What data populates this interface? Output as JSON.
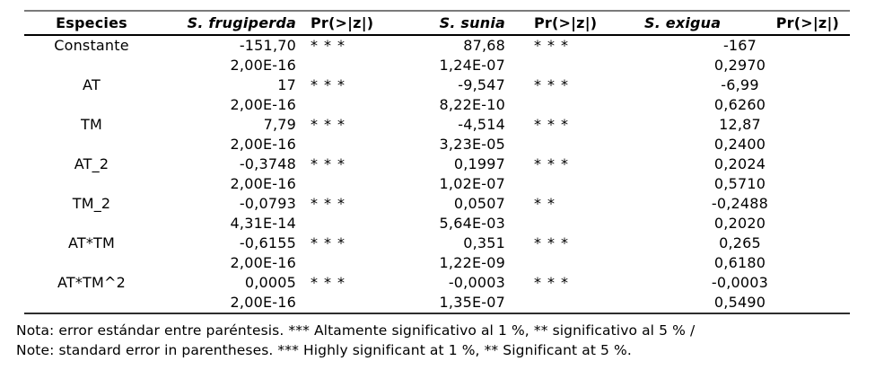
{
  "table": {
    "header": {
      "especies": "Especies",
      "frugiperda": "S. frugiperda",
      "pr1": "Pr(>|z|)",
      "sunia": "S. sunia",
      "pr2": "Pr(>|z|)",
      "exigua": "S. exigua",
      "pr3": "Pr(>|z|)"
    },
    "rows": [
      {
        "label": "Constante",
        "frugiperda": "-151,70",
        "frugiperda_sig": "***",
        "sunia": "87,68",
        "sunia_sig": "***",
        "exigua": "-167"
      },
      {
        "label": "",
        "frugiperda": "2,00E-16",
        "frugiperda_sig": "",
        "sunia": "1,24E-07",
        "sunia_sig": "",
        "exigua": "0,2970"
      },
      {
        "label": "AT",
        "frugiperda": "17",
        "frugiperda_sig": "***",
        "sunia": "-9,547",
        "sunia_sig": "***",
        "exigua": "-6,99"
      },
      {
        "label": "",
        "frugiperda": "2,00E-16",
        "frugiperda_sig": "",
        "sunia": "8,22E-10",
        "sunia_sig": "",
        "exigua": "0,6260"
      },
      {
        "label": "TM",
        "frugiperda": "7,79",
        "frugiperda_sig": "***",
        "sunia": "-4,514",
        "sunia_sig": "***",
        "exigua": "12,87"
      },
      {
        "label": "",
        "frugiperda": "2,00E-16",
        "frugiperda_sig": "",
        "sunia": "3,23E-05",
        "sunia_sig": "",
        "exigua": "0,2400"
      },
      {
        "label": "AT_2",
        "frugiperda": "-0,3748",
        "frugiperda_sig": "***",
        "sunia": "0,1997",
        "sunia_sig": "***",
        "exigua": "0,2024"
      },
      {
        "label": "",
        "frugiperda": "2,00E-16",
        "frugiperda_sig": "",
        "sunia": "1,02E-07",
        "sunia_sig": "",
        "exigua": "0,5710"
      },
      {
        "label": "TM_2",
        "frugiperda": "-0,0793",
        "frugiperda_sig": "***",
        "sunia": "0,0507",
        "sunia_sig": "**",
        "exigua": "-0,2488"
      },
      {
        "label": "",
        "frugiperda": "4,31E-14",
        "frugiperda_sig": "",
        "sunia": "5,64E-03",
        "sunia_sig": "",
        "exigua": "0,2020"
      },
      {
        "label": "AT*TM",
        "frugiperda": "-0,6155",
        "frugiperda_sig": "***",
        "sunia": "0,351",
        "sunia_sig": "***",
        "exigua": "0,265"
      },
      {
        "label": "",
        "frugiperda": "2,00E-16",
        "frugiperda_sig": "",
        "sunia": "1,22E-09",
        "sunia_sig": "",
        "exigua": "0,6180"
      },
      {
        "label": "AT*TM^2",
        "frugiperda": "0,0005",
        "frugiperda_sig": "***",
        "sunia": "-0,0003",
        "sunia_sig": "***",
        "exigua": "-0,0003"
      },
      {
        "label": "",
        "frugiperda": "2,00E-16",
        "frugiperda_sig": "",
        "sunia": "1,35E-07",
        "sunia_sig": "",
        "exigua": "0,5490"
      }
    ]
  },
  "notes": {
    "spanish": "Nota: error estándar entre paréntesis. *** Altamente significativo al 1 %, ** significativo al 5 % /",
    "english": "Note: standard error in parentheses. *** Highly significant at 1 %, ** Significant at 5 %."
  },
  "colors": {
    "text": "#000000",
    "rule_top": "#7a7a7a",
    "rule_header_bottom": "#000000",
    "rule_table_bottom": "#2e2e2e",
    "background": "#ffffff"
  }
}
